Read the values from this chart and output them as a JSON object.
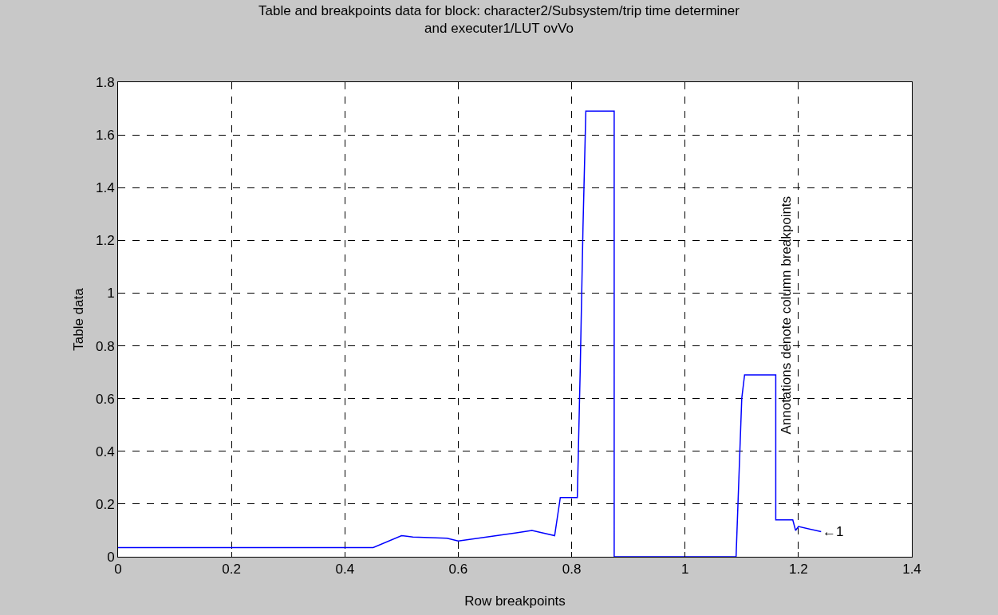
{
  "chart_data": {
    "type": "line",
    "title": "Table and breakpoints data for block: character2/Subsystem/trip time determiner\nand executer1/LUT ovVo",
    "xlabel": "Row breakpoints",
    "ylabel": "Table data",
    "x": [
      0,
      0.45,
      0.5,
      0.52,
      0.58,
      0.6,
      0.65,
      0.7,
      0.73,
      0.77,
      0.78,
      0.81,
      0.815,
      0.82,
      0.825,
      0.875,
      0.875,
      1.09,
      1.095,
      1.1,
      1.105,
      1.16,
      1.16,
      1.19,
      1.195,
      1.2,
      1.24
    ],
    "series": [
      {
        "color": "#0000ff",
        "values": [
          0.035,
          0.035,
          0.08,
          0.075,
          0.07,
          0.06,
          0.075,
          0.09,
          0.1,
          0.08,
          0.225,
          0.225,
          0.7,
          1.25,
          1.69,
          1.69,
          0,
          0,
          0.3,
          0.6,
          0.69,
          0.69,
          0.14,
          0.14,
          0.1,
          0.115,
          0.095
        ]
      }
    ],
    "xlim": [
      0,
      1.4
    ],
    "xticks": [
      0,
      0.2,
      0.4,
      0.6,
      0.8,
      1,
      1.2,
      1.4
    ],
    "ylim": [
      0,
      1.8
    ],
    "yticks": [
      0,
      0.2,
      0.4,
      0.6,
      0.8,
      1,
      1.2,
      1.4,
      1.6,
      1.8
    ],
    "annotations": [
      "Annotations denote column breakpoints",
      {
        "text": "←1",
        "x": 1.24,
        "y": 0.095
      }
    ],
    "grid": true,
    "line_style": "solid",
    "marker": "none"
  }
}
